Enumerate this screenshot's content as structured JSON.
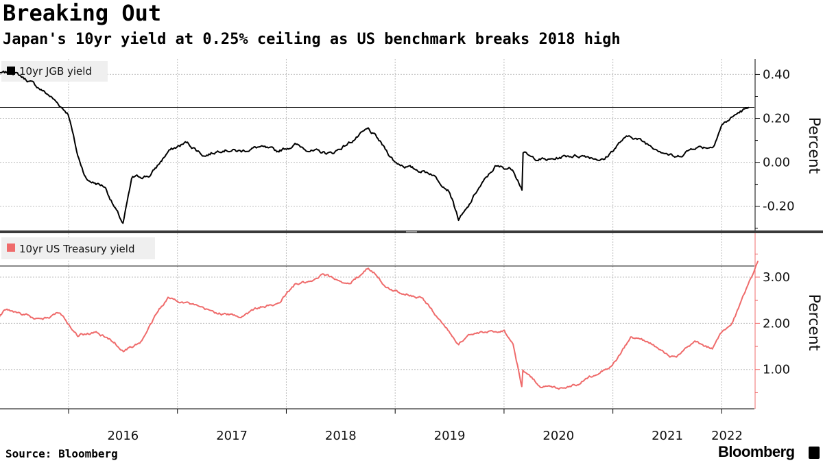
{
  "title": "Breaking Out",
  "subtitle": "Japan's 10yr yield at 0.25% ceiling as US benchmark breaks 2018 high",
  "source": "Source:  Bloomberg",
  "brand": "Bloomberg",
  "colors": {
    "jgb": "#000000",
    "ust": "#ef6b6b",
    "grid": "#bdbdbd"
  },
  "chart_data": [
    {
      "type": "line",
      "legend": "10yr JGB yield",
      "ylabel": "Percent",
      "yticks": [
        "0.40",
        "0.20",
        "0.00",
        "-0.20"
      ],
      "ylim": [
        -0.31,
        0.47
      ],
      "reference_line": 0.25,
      "x_ticks": [
        "2016",
        "2017",
        "2018",
        "2019",
        "2020",
        "2021",
        "2022"
      ],
      "series": [
        {
          "name": "10yr JGB yield",
          "x": [
            "2015-05",
            "2015-07",
            "2015-09",
            "2015-11",
            "2016-01",
            "2016-02",
            "2016-03",
            "2016-05",
            "2016-06",
            "2016-07",
            "2016-08",
            "2016-10",
            "2016-12",
            "2017-02",
            "2017-04",
            "2017-06",
            "2017-08",
            "2017-10",
            "2017-12",
            "2018-02",
            "2018-04",
            "2018-06",
            "2018-08",
            "2018-10",
            "2018-11",
            "2019-01",
            "2019-03",
            "2019-05",
            "2019-07",
            "2019-08",
            "2019-09",
            "2019-10",
            "2019-12",
            "2020-02",
            "2020-03",
            "2020-03",
            "2020-04",
            "2020-06",
            "2020-08",
            "2020-10",
            "2020-12",
            "2021-02",
            "2021-03",
            "2021-05",
            "2021-07",
            "2021-08",
            "2021-10",
            "2021-12",
            "2022-01",
            "2022-02",
            "2022-03",
            "2022-04"
          ],
          "values": [
            0.4,
            0.41,
            0.36,
            0.3,
            0.22,
            0.03,
            -0.08,
            -0.11,
            -0.2,
            -0.28,
            -0.07,
            -0.06,
            0.05,
            0.09,
            0.03,
            0.06,
            0.05,
            0.07,
            0.05,
            0.08,
            0.05,
            0.04,
            0.09,
            0.15,
            0.11,
            0.0,
            -0.03,
            -0.05,
            -0.13,
            -0.26,
            -0.21,
            -0.13,
            -0.02,
            -0.03,
            -0.12,
            0.05,
            0.02,
            0.01,
            0.03,
            0.03,
            0.01,
            0.1,
            0.12,
            0.08,
            0.04,
            0.02,
            0.07,
            0.07,
            0.17,
            0.2,
            0.23,
            0.25
          ]
        }
      ]
    },
    {
      "type": "line",
      "legend": "10yr US Treasury yield",
      "ylabel": "Percent",
      "yticks": [
        "3.00",
        "2.00",
        "1.00"
      ],
      "ylim": [
        0.15,
        3.95
      ],
      "reference_line": 3.24,
      "x_ticks": [
        "2016",
        "2017",
        "2018",
        "2019",
        "2020",
        "2021",
        "2022"
      ],
      "series": [
        {
          "name": "10yr US Treasury yield",
          "x": [
            "2015-05",
            "2015-06",
            "2015-08",
            "2015-10",
            "2015-12",
            "2016-02",
            "2016-04",
            "2016-06",
            "2016-07",
            "2016-09",
            "2016-11",
            "2016-12",
            "2017-02",
            "2017-04",
            "2017-06",
            "2017-08",
            "2017-10",
            "2017-12",
            "2018-02",
            "2018-04",
            "2018-05",
            "2018-08",
            "2018-10",
            "2018-11",
            "2018-12",
            "2019-02",
            "2019-04",
            "2019-06",
            "2019-08",
            "2019-09",
            "2019-11",
            "2020-01",
            "2020-02",
            "2020-03",
            "2020-03",
            "2020-05",
            "2020-07",
            "2020-09",
            "2020-11",
            "2021-01",
            "2021-03",
            "2021-05",
            "2021-07",
            "2021-08",
            "2021-10",
            "2021-12",
            "2022-01",
            "2022-02",
            "2022-03",
            "2022-04",
            "2022-05"
          ],
          "values": [
            2.05,
            2.3,
            2.2,
            2.05,
            2.25,
            1.75,
            1.8,
            1.6,
            1.4,
            1.6,
            2.3,
            2.55,
            2.45,
            2.3,
            2.2,
            2.15,
            2.35,
            2.4,
            2.85,
            2.9,
            3.05,
            2.85,
            3.2,
            3.05,
            2.75,
            2.65,
            2.55,
            2.05,
            1.55,
            1.75,
            1.8,
            1.85,
            1.55,
            0.6,
            1.0,
            0.65,
            0.6,
            0.68,
            0.9,
            1.1,
            1.7,
            1.6,
            1.3,
            1.25,
            1.6,
            1.45,
            1.8,
            1.95,
            2.4,
            2.9,
            3.35
          ]
        }
      ]
    }
  ]
}
